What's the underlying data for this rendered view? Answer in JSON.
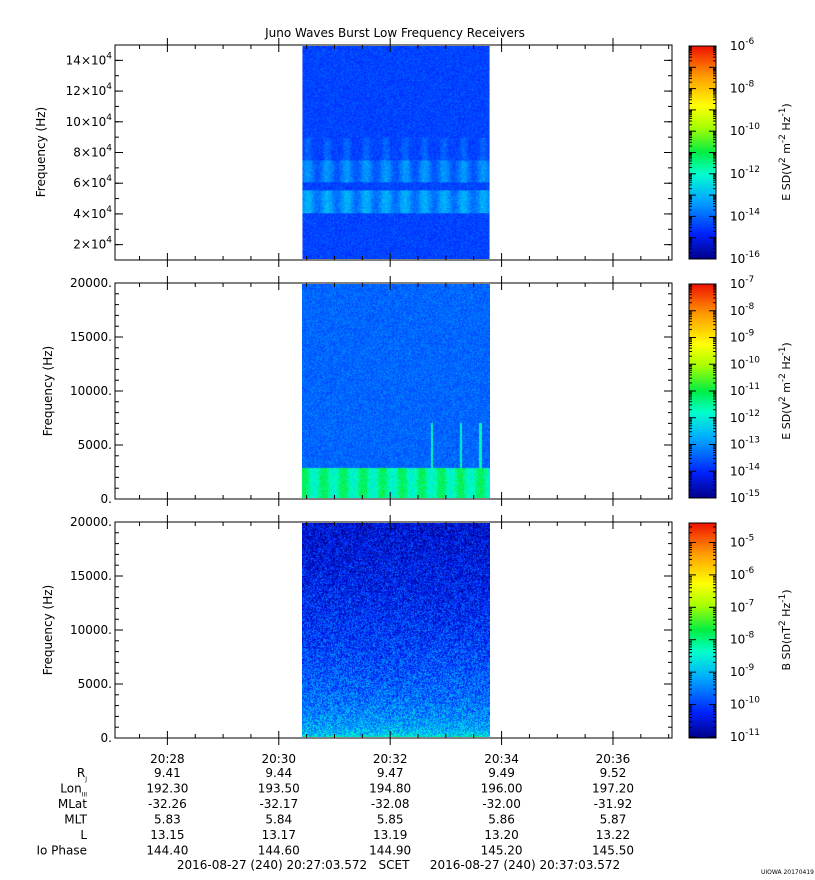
{
  "title": "Juno Waves Burst Low Frequency Receivers",
  "credit": "UIOWA 20170419",
  "chart_data": [
    {
      "type": "heatmap",
      "id": "panel-1",
      "ylabel": "Frequency (Hz)",
      "ylim": [
        10000,
        150000
      ],
      "y_ticks": [
        {
          "value": 20000,
          "mant": "2",
          "exp": "4"
        },
        {
          "value": 40000,
          "mant": "4",
          "exp": "4"
        },
        {
          "value": 60000,
          "mant": "6",
          "exp": "4"
        },
        {
          "value": 80000,
          "mant": "8",
          "exp": "4"
        },
        {
          "value": 100000,
          "mant": "10",
          "exp": "4"
        },
        {
          "value": 120000,
          "mant": "12",
          "exp": "4"
        },
        {
          "value": 140000,
          "mant": "14",
          "exp": "4"
        }
      ],
      "data_time_range": [
        "20:30:20",
        "20:33:48"
      ],
      "features": [
        {
          "kind": "band",
          "from": 40000,
          "to": 55000,
          "level": -13.5
        },
        {
          "kind": "band",
          "from": 60000,
          "to": 75000,
          "level": -13.8
        },
        {
          "kind": "band",
          "from": 75000,
          "to": 90000,
          "level": -14.4
        }
      ],
      "colorbar": {
        "label_main": "E SD(V",
        "label_sup1": "2",
        "label_mid": " m",
        "label_sup2": "-2",
        "label_end": " Hz",
        "label_sup3": "-1",
        "label_close": ")",
        "scale": "log",
        "range_exp": [
          -16,
          -6
        ],
        "ticks": [
          {
            "base": "10",
            "exp": "-16"
          },
          {
            "base": "10",
            "exp": "-14"
          },
          {
            "base": "10",
            "exp": "-12"
          },
          {
            "base": "10",
            "exp": "-10"
          },
          {
            "base": "10",
            "exp": "-8"
          },
          {
            "base": "10",
            "exp": "-6"
          }
        ]
      }
    },
    {
      "type": "heatmap",
      "id": "panel-2",
      "ylabel": "Frequency (Hz)",
      "ylim": [
        0,
        20000
      ],
      "y_ticks": [
        {
          "value": 0,
          "label": "0."
        },
        {
          "value": 5000,
          "label": "5000."
        },
        {
          "value": 10000,
          "label": "10000."
        },
        {
          "value": 15000,
          "label": "15000."
        },
        {
          "value": 20000,
          "label": "20000."
        }
      ],
      "data_time_range": [
        "20:30:20",
        "20:33:48"
      ],
      "features": [
        {
          "kind": "band",
          "from": 0,
          "to": 2800,
          "level": -11.5
        },
        {
          "kind": "spikes",
          "times": [
            "20:32:44",
            "20:33:16",
            "20:33:38"
          ],
          "max_freq": 7000
        }
      ],
      "colorbar": {
        "label_main": "E SD(V",
        "label_sup1": "2",
        "label_mid": " m",
        "label_sup2": "-2",
        "label_end": " Hz",
        "label_sup3": "-1",
        "label_close": ")",
        "scale": "log",
        "range_exp": [
          -15,
          -7
        ],
        "ticks": [
          {
            "base": "10",
            "exp": "-15"
          },
          {
            "base": "10",
            "exp": "-14"
          },
          {
            "base": "10",
            "exp": "-13"
          },
          {
            "base": "10",
            "exp": "-12"
          },
          {
            "base": "10",
            "exp": "-11"
          },
          {
            "base": "10",
            "exp": "-10"
          },
          {
            "base": "10",
            "exp": "-9"
          },
          {
            "base": "10",
            "exp": "-8"
          },
          {
            "base": "10",
            "exp": "-7"
          }
        ]
      }
    },
    {
      "type": "heatmap",
      "id": "panel-3",
      "ylabel": "Frequency (Hz)",
      "ylim": [
        0,
        20000
      ],
      "y_ticks": [
        {
          "value": 0,
          "label": "0."
        },
        {
          "value": 5000,
          "label": "5000."
        },
        {
          "value": 10000,
          "label": "10000."
        },
        {
          "value": 15000,
          "label": "15000."
        },
        {
          "value": 20000,
          "label": "20000."
        }
      ],
      "data_time_range": [
        "20:30:20",
        "20:33:48"
      ],
      "features": [
        {
          "kind": "gradient",
          "from": 0,
          "to": 20000,
          "level_low": -8.5,
          "level_high": -10.5
        }
      ],
      "colorbar": {
        "label_main": "B SD(nT",
        "label_sup1": "2",
        "label_mid": "",
        "label_sup2": "",
        "label_end": " Hz",
        "label_sup3": "-1",
        "label_close": ")",
        "scale": "log",
        "range_exp": [
          -11,
          -4.4
        ],
        "ticks": [
          {
            "base": "10",
            "exp": "-11"
          },
          {
            "base": "10",
            "exp": "-10"
          },
          {
            "base": "10",
            "exp": "-9"
          },
          {
            "base": "10",
            "exp": "-8"
          },
          {
            "base": "10",
            "exp": "-7"
          },
          {
            "base": "10",
            "exp": "-6"
          },
          {
            "base": "10",
            "exp": "-5"
          }
        ]
      }
    }
  ],
  "x_axis": {
    "range": [
      "20:27:03.572",
      "20:37:03.572"
    ],
    "major": [
      "20:28",
      "20:30",
      "20:32",
      "20:34",
      "20:36"
    ]
  },
  "ephemeris": {
    "rows": [
      {
        "label": "R",
        "sub": "J",
        "values": [
          "9.41",
          "9.44",
          "9.47",
          "9.49",
          "9.52"
        ]
      },
      {
        "label": "Lon",
        "sub": "III",
        "values": [
          "192.30",
          "193.50",
          "194.80",
          "196.00",
          "197.20"
        ]
      },
      {
        "label": "MLat",
        "sub": "",
        "values": [
          "-32.26",
          "-32.17",
          "-32.08",
          "-32.00",
          "-31.92"
        ]
      },
      {
        "label": "MLT",
        "sub": "",
        "values": [
          "5.83",
          "5.84",
          "5.85",
          "5.86",
          "5.87"
        ]
      },
      {
        "label": "L",
        "sub": "",
        "values": [
          "13.15",
          "13.17",
          "13.19",
          "13.20",
          "13.22"
        ]
      },
      {
        "label": "Io Phase",
        "sub": "",
        "values": [
          "144.40",
          "144.60",
          "144.90",
          "145.20",
          "145.50"
        ]
      }
    ]
  },
  "footer": {
    "start": "2016-08-27 (240) 20:27:03.572",
    "scet": "SCET",
    "end": "2016-08-27 (240) 20:37:03.572"
  }
}
